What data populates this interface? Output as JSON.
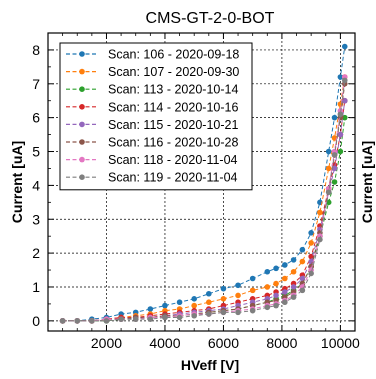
{
  "chart_data": {
    "type": "line",
    "title": "CMS-GT-2-0-BOT",
    "xlabel": "HVeff [V]",
    "ylabel": "Current [uA]",
    "ylabel_right": "Current [uA]",
    "xlim": [
      0,
      10500
    ],
    "ylim": [
      -0.3,
      8.5
    ],
    "x_ticks": [
      2000,
      4000,
      6000,
      8000,
      10000
    ],
    "y_ticks": [
      0,
      1,
      2,
      3,
      4,
      5,
      6,
      7,
      8
    ],
    "grid": true,
    "legend_position": "top-left",
    "series": [
      {
        "name": "Scan: 106 - 2020-09-18",
        "color": "#1f77b4",
        "x": [
          500,
          1000,
          1500,
          2000,
          2500,
          3000,
          3500,
          4000,
          4500,
          5000,
          5500,
          6000,
          6500,
          7000,
          7500,
          7800,
          8100,
          8400,
          8700,
          9000,
          9300,
          9600,
          9800,
          10000,
          10150
        ],
        "y": [
          0.0,
          0.0,
          0.05,
          0.1,
          0.2,
          0.25,
          0.35,
          0.45,
          0.55,
          0.65,
          0.8,
          0.95,
          1.05,
          1.25,
          1.45,
          1.55,
          1.65,
          1.8,
          2.1,
          2.6,
          3.5,
          5.0,
          6.0,
          7.2,
          8.1
        ]
      },
      {
        "name": "Scan: 107 - 2020-09-30",
        "color": "#ff7f0e",
        "x": [
          500,
          1000,
          1500,
          2000,
          2500,
          3000,
          3500,
          4000,
          4500,
          5000,
          5500,
          6000,
          6500,
          7000,
          7500,
          7800,
          8100,
          8400,
          8700,
          9000,
          9300,
          9600,
          9800,
          10000,
          10150
        ],
        "y": [
          0.0,
          0.0,
          0.0,
          0.05,
          0.1,
          0.15,
          0.2,
          0.3,
          0.35,
          0.45,
          0.55,
          0.65,
          0.75,
          0.9,
          1.0,
          1.1,
          1.25,
          1.45,
          1.75,
          2.3,
          3.2,
          4.5,
          5.4,
          6.4,
          7.2
        ]
      },
      {
        "name": "Scan: 113 - 2020-10-14",
        "color": "#2ca02c",
        "x": [
          500,
          1000,
          1500,
          2000,
          2500,
          3000,
          3500,
          4000,
          4500,
          5000,
          5500,
          6000,
          6500,
          7000,
          7500,
          7800,
          8100,
          8400,
          8700,
          9000,
          9300,
          9600,
          9800,
          10000,
          10150
        ],
        "y": [
          0.0,
          0.0,
          0.0,
          0.0,
          0.05,
          0.05,
          0.1,
          0.1,
          0.15,
          0.2,
          0.25,
          0.3,
          0.35,
          0.45,
          0.55,
          0.65,
          0.75,
          0.9,
          1.1,
          1.6,
          2.5,
          3.5,
          4.1,
          5.0,
          6.0
        ]
      },
      {
        "name": "Scan: 114 - 2020-10-16",
        "color": "#d62728",
        "x": [
          500,
          1000,
          1500,
          2000,
          2500,
          3000,
          3500,
          4000,
          4500,
          5000,
          5500,
          6000,
          6500,
          7000,
          7500,
          7800,
          8100,
          8400,
          8700,
          9000,
          9300,
          9600,
          9800,
          10000,
          10150
        ],
        "y": [
          0.0,
          0.0,
          0.0,
          0.05,
          0.1,
          0.1,
          0.15,
          0.2,
          0.25,
          0.3,
          0.35,
          0.45,
          0.55,
          0.65,
          0.75,
          0.85,
          0.95,
          1.1,
          1.35,
          1.9,
          2.8,
          3.9,
          4.6,
          5.5,
          6.5
        ]
      },
      {
        "name": "Scan: 115 - 2020-10-21",
        "color": "#9467bd",
        "x": [
          500,
          1000,
          1500,
          2000,
          2500,
          3000,
          3500,
          4000,
          4500,
          5000,
          5500,
          6000,
          6500,
          7000,
          7500,
          7800,
          8100,
          8400,
          8700,
          9000,
          9300,
          9600,
          9800,
          10000,
          10150
        ],
        "y": [
          0.0,
          0.0,
          0.0,
          0.05,
          0.05,
          0.1,
          0.1,
          0.15,
          0.2,
          0.25,
          0.3,
          0.35,
          0.45,
          0.55,
          0.65,
          0.75,
          0.85,
          1.0,
          1.25,
          1.75,
          2.7,
          3.8,
          4.5,
          5.5,
          6.5
        ]
      },
      {
        "name": "Scan: 116 - 2020-10-28",
        "color": "#8c564b",
        "x": [
          500,
          1000,
          1500,
          2000,
          2500,
          3000,
          3500,
          4000,
          4500,
          5000,
          5500,
          6000,
          6500,
          7000,
          7500,
          7800,
          8100,
          8400,
          8700,
          9000,
          9300,
          9600,
          9800,
          10000,
          10150
        ],
        "y": [
          0.0,
          0.0,
          0.0,
          0.05,
          0.05,
          0.1,
          0.1,
          0.15,
          0.15,
          0.2,
          0.25,
          0.3,
          0.35,
          0.45,
          0.55,
          0.6,
          0.7,
          0.85,
          1.1,
          1.6,
          2.6,
          3.9,
          4.9,
          6.0,
          7.0
        ]
      },
      {
        "name": "Scan: 118 - 2020-11-04",
        "color": "#e377c2",
        "x": [
          500,
          1000,
          1500,
          2000,
          2500,
          3000,
          3500,
          4000,
          4500,
          5000,
          5500,
          6000,
          6500,
          7000,
          7500,
          7800,
          8100,
          8400,
          8700,
          9000,
          9300,
          9600,
          9800,
          10000,
          10150
        ],
        "y": [
          0.0,
          0.0,
          0.0,
          0.05,
          0.05,
          0.05,
          0.1,
          0.1,
          0.15,
          0.2,
          0.2,
          0.25,
          0.3,
          0.35,
          0.45,
          0.5,
          0.6,
          0.75,
          1.0,
          1.5,
          2.5,
          3.9,
          5.0,
          6.2,
          7.2
        ]
      },
      {
        "name": "Scan: 119 - 2020-11-04",
        "color": "#7f7f7f",
        "x": [
          500,
          1000,
          1500,
          2000,
          2500,
          3000,
          3500,
          4000,
          4500,
          5000,
          5500,
          6000,
          6500,
          7000,
          7500,
          7800,
          8100,
          8400,
          8700,
          9000,
          9300,
          9600,
          9800,
          10000,
          10150
        ],
        "y": [
          0.0,
          0.0,
          0.0,
          0.0,
          0.05,
          0.05,
          0.05,
          0.1,
          0.1,
          0.15,
          0.2,
          0.25,
          0.25,
          0.3,
          0.4,
          0.45,
          0.55,
          0.7,
          0.9,
          1.4,
          2.4,
          3.8,
          4.9,
          6.1,
          7.1
        ]
      }
    ]
  }
}
